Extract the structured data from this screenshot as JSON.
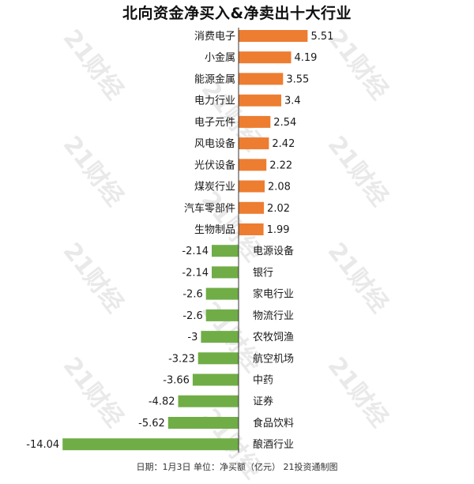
{
  "title": "北向资金净买入&净卖出十大行业",
  "footer": "日期：1月3日 单位：净买额（亿元） 21投资通制图",
  "watermark_text": "21财经",
  "colors": {
    "positive": "#ED7D31",
    "negative": "#70AD47",
    "axis": "#333333"
  },
  "chart_data": {
    "type": "bar",
    "orientation": "horizontal",
    "title": "北向资金净买入&净卖出十大行业",
    "categories": [
      "消费电子",
      "小金属",
      "能源金属",
      "电力行业",
      "电子元件",
      "风电设备",
      "光伏设备",
      "煤炭行业",
      "汽车零部件",
      "生物制品",
      "电源设备",
      "银行",
      "家电行业",
      "物流行业",
      "农牧饲渔",
      "航空机场",
      "中药",
      "证券",
      "食品饮料",
      "酿酒行业"
    ],
    "values": [
      5.51,
      4.19,
      3.55,
      3.4,
      2.54,
      2.42,
      2.22,
      2.08,
      2.02,
      1.99,
      -2.14,
      -2.14,
      -2.6,
      -2.6,
      -3,
      -3.23,
      -3.66,
      -4.82,
      -5.62,
      -14.04
    ],
    "value_labels": [
      "5.51",
      "4.19",
      "3.55",
      "3.4",
      "2.54",
      "2.42",
      "2.22",
      "2.08",
      "2.02",
      "1.99",
      "-2.14",
      "-2.14",
      "-2.6",
      "-2.6",
      "-3",
      "-3.23",
      "-3.66",
      "-4.82",
      "-5.62",
      "-14.04"
    ],
    "xlabel": "",
    "ylabel": "",
    "xlim": [
      -14.04,
      5.51
    ],
    "grid": false,
    "legend": false
  }
}
